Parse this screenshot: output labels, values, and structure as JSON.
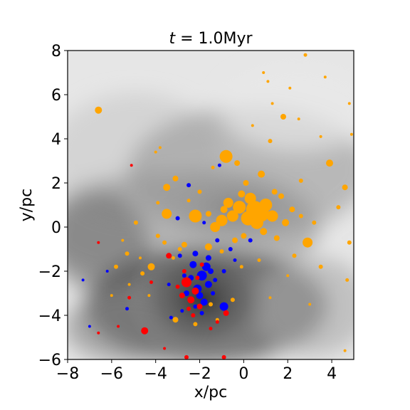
{
  "chart_data": {
    "type": "scatter",
    "title_var": "t",
    "title_eq": " = 1.0Myr",
    "xlabel": "x/pc",
    "ylabel": "y/pc",
    "xlim": [
      -8,
      5
    ],
    "ylim": [
      -6,
      8
    ],
    "xticks": [
      -8,
      -6,
      -4,
      -2,
      0,
      2,
      4
    ],
    "yticks": [
      -6,
      -4,
      -2,
      0,
      2,
      4,
      6,
      8
    ],
    "grid": false,
    "background": "grayscale gas density map",
    "colors": {
      "orange": "#ffa500",
      "blue": "#0000ff",
      "red": "#ff0000"
    },
    "series": [
      {
        "color": "orange",
        "points": [
          [
            0.5,
            0.8,
            12
          ],
          [
            0.8,
            0.6,
            11
          ],
          [
            0.2,
            0.4,
            10
          ],
          [
            1.0,
            1.0,
            9
          ],
          [
            -0.2,
            0.9,
            9
          ],
          [
            0.6,
            0.2,
            9
          ],
          [
            -0.5,
            0.5,
            8
          ],
          [
            1.3,
            0.5,
            8
          ],
          [
            0.3,
            1.3,
            8
          ],
          [
            -1.0,
            0.3,
            8
          ],
          [
            -2.2,
            0.5,
            9
          ],
          [
            -1.3,
            0.0,
            7
          ],
          [
            -0.7,
            1.1,
            7
          ],
          [
            -0.8,
            3.2,
            9
          ],
          [
            -3.5,
            0.6,
            7
          ],
          [
            2.9,
            -0.7,
            7
          ],
          [
            -6.6,
            5.3,
            5
          ],
          [
            1.8,
            5.0,
            4
          ],
          [
            3.9,
            2.9,
            5
          ],
          [
            2.8,
            7.8,
            2.5
          ],
          [
            -3.5,
            1.8,
            5
          ],
          [
            -3.1,
            2.2,
            4
          ],
          [
            -0.3,
            2.9,
            4
          ],
          [
            -4.2,
            -1.8,
            5
          ],
          [
            -1.6,
            -0.9,
            5
          ],
          [
            0.8,
            2.4,
            5
          ],
          [
            1.2,
            3.9,
            3
          ],
          [
            4.6,
            1.8,
            4
          ],
          [
            -5.3,
            -1.2,
            3
          ],
          [
            -4.9,
            0.2,
            3
          ],
          [
            -2.7,
            -0.8,
            4
          ],
          [
            -1.0,
            -1.1,
            3
          ],
          [
            1.5,
            -0.5,
            4
          ],
          [
            2.3,
            -1.3,
            3
          ],
          [
            3.5,
            -1.8,
            3
          ],
          [
            4.3,
            0.9,
            3
          ],
          [
            2.6,
            2.1,
            3
          ],
          [
            -2.0,
            1.6,
            3
          ],
          [
            0.1,
            2.0,
            4
          ],
          [
            1.7,
            1.4,
            4
          ],
          [
            -0.4,
            -0.6,
            4
          ],
          [
            -2.9,
            -1.0,
            3
          ],
          [
            -3.9,
            -0.4,
            3
          ],
          [
            -5.8,
            -1.8,
            3
          ],
          [
            -4.6,
            -2.1,
            3
          ],
          [
            -3.1,
            -4.2,
            4
          ],
          [
            -1.5,
            -3.5,
            3
          ],
          [
            -2.2,
            -4.4,
            3
          ],
          [
            -0.5,
            -3.3,
            3
          ],
          [
            -3.9,
            1.1,
            2.5
          ],
          [
            4.8,
            -0.7,
            3
          ],
          [
            4.7,
            -2.4,
            2.5
          ],
          [
            4.6,
            -5.6,
            2
          ],
          [
            4.9,
            4.2,
            2
          ],
          [
            4.8,
            5.6,
            2
          ],
          [
            3.7,
            6.8,
            2
          ],
          [
            2.1,
            6.3,
            2
          ],
          [
            1.3,
            5.6,
            2
          ],
          [
            1.1,
            6.6,
            2
          ],
          [
            0.9,
            7.0,
            2
          ],
          [
            3.5,
            4.1,
            2
          ],
          [
            2.5,
            4.9,
            2
          ],
          [
            0.4,
            4.6,
            2
          ],
          [
            -1.4,
            2.7,
            2.5
          ],
          [
            -3.8,
            3.6,
            2
          ],
          [
            -4.0,
            3.4,
            2
          ],
          [
            -6.0,
            -3.1,
            2
          ],
          [
            -3.2,
            -1.4,
            2.5
          ],
          [
            -0.1,
            -1.8,
            2.5
          ],
          [
            0.7,
            -1.5,
            2.5
          ],
          [
            2.0,
            -2.2,
            2
          ],
          [
            1.2,
            -3.2,
            2
          ],
          [
            3.0,
            -3.5,
            2
          ],
          [
            -1.2,
            -4.2,
            2.5
          ],
          [
            -4.3,
            -3.1,
            2
          ],
          [
            -5.2,
            -2.6,
            2
          ],
          [
            -4.7,
            -1.4,
            2
          ],
          [
            -5.5,
            -0.6,
            2
          ],
          [
            -3.6,
            -0.7,
            3
          ],
          [
            -2.5,
            1.2,
            2.5
          ],
          [
            1.9,
            0.2,
            5
          ],
          [
            2.2,
            0.8,
            4
          ],
          [
            -0.1,
            1.5,
            5
          ],
          [
            0.9,
            -0.2,
            5
          ],
          [
            -0.9,
            0.8,
            5
          ],
          [
            1.4,
            1.6,
            4
          ],
          [
            0.0,
            -0.4,
            4
          ],
          [
            -1.6,
            0.6,
            4
          ],
          [
            2.6,
            0.5,
            3
          ],
          [
            3.2,
            0.2,
            3
          ]
        ]
      },
      {
        "color": "blue",
        "points": [
          [
            -1.9,
            -2.2,
            7
          ],
          [
            -1.7,
            -1.8,
            6
          ],
          [
            -2.1,
            -2.8,
            6
          ],
          [
            -1.6,
            -2.6,
            5
          ],
          [
            -2.3,
            -1.7,
            5
          ],
          [
            -2.0,
            -3.1,
            5
          ],
          [
            -1.8,
            -3.4,
            5
          ],
          [
            -2.4,
            -2.3,
            4
          ],
          [
            -1.5,
            -2.0,
            4
          ],
          [
            -2.6,
            -3.0,
            4
          ],
          [
            -0.9,
            -3.6,
            6
          ],
          [
            -1.6,
            -1.4,
            4
          ],
          [
            -2.2,
            -1.2,
            4
          ],
          [
            -1.3,
            -2.4,
            3
          ],
          [
            -2.7,
            -2.2,
            3
          ],
          [
            -1.2,
            -0.6,
            3
          ],
          [
            -0.6,
            -1.0,
            3
          ],
          [
            -2.5,
            1.9,
            3
          ],
          [
            -3.0,
            0.4,
            3
          ],
          [
            0.3,
            -0.6,
            3
          ],
          [
            -3.3,
            -4.1,
            2.5
          ],
          [
            -5.3,
            -3.7,
            2.5
          ],
          [
            -6.2,
            -2.0,
            2
          ],
          [
            -7.3,
            -2.4,
            2
          ],
          [
            -7.0,
            -4.5,
            2
          ],
          [
            -1.1,
            2.8,
            2.5
          ],
          [
            -1.8,
            0.2,
            2.5
          ],
          [
            -2.8,
            -3.8,
            2.5
          ],
          [
            -1.9,
            -3.9,
            3
          ],
          [
            -2.2,
            -3.6,
            3
          ],
          [
            -0.9,
            -2.0,
            3
          ],
          [
            -0.4,
            -1.5,
            2.5
          ],
          [
            -2.9,
            -1.3,
            3
          ],
          [
            -3.4,
            -2.6,
            2.5
          ],
          [
            -1.4,
            -3.0,
            3
          ]
        ]
      },
      {
        "color": "red",
        "points": [
          [
            -2.6,
            -2.5,
            7
          ],
          [
            -2.2,
            -2.9,
            5
          ],
          [
            -2.4,
            -3.3,
            5
          ],
          [
            -2.0,
            -3.6,
            4
          ],
          [
            -2.8,
            -3.1,
            4
          ],
          [
            -4.5,
            -4.7,
            5
          ],
          [
            -0.8,
            -3.9,
            4
          ],
          [
            -3.4,
            -1.3,
            4
          ],
          [
            -2.5,
            -3.7,
            3
          ],
          [
            -2.1,
            -2.3,
            3
          ],
          [
            -2.7,
            -2.0,
            3
          ],
          [
            -2.3,
            -4.0,
            3
          ],
          [
            -2.6,
            -5.9,
            3
          ],
          [
            -0.9,
            -5.9,
            3
          ],
          [
            -4.2,
            -2.5,
            2.5
          ],
          [
            -5.2,
            -3.2,
            2.5
          ],
          [
            -6.6,
            -4.8,
            2
          ],
          [
            -5.7,
            -4.5,
            2
          ],
          [
            -6.6,
            -0.7,
            2
          ],
          [
            -5.1,
            2.8,
            2
          ],
          [
            -3.6,
            -5.5,
            2
          ],
          [
            -1.5,
            -4.6,
            2.5
          ],
          [
            -1.2,
            -4.3,
            2.5
          ],
          [
            -3.0,
            -2.7,
            3
          ],
          [
            -1.9,
            -1.7,
            3
          ]
        ]
      }
    ]
  }
}
